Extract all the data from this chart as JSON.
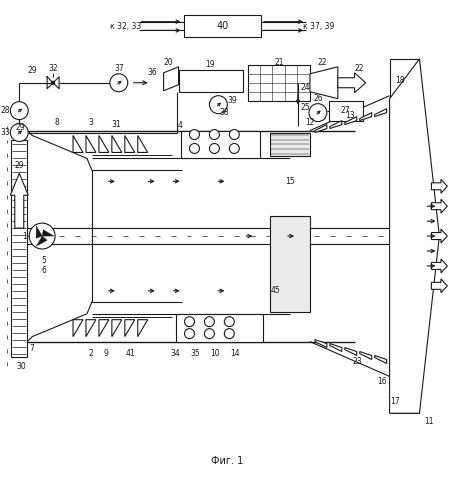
{
  "title": "Фиг. 1",
  "bg_color": "#ffffff",
  "line_color": "#1a1a1a",
  "fig_width": 4.54,
  "fig_height": 5.0,
  "dpi": 100
}
